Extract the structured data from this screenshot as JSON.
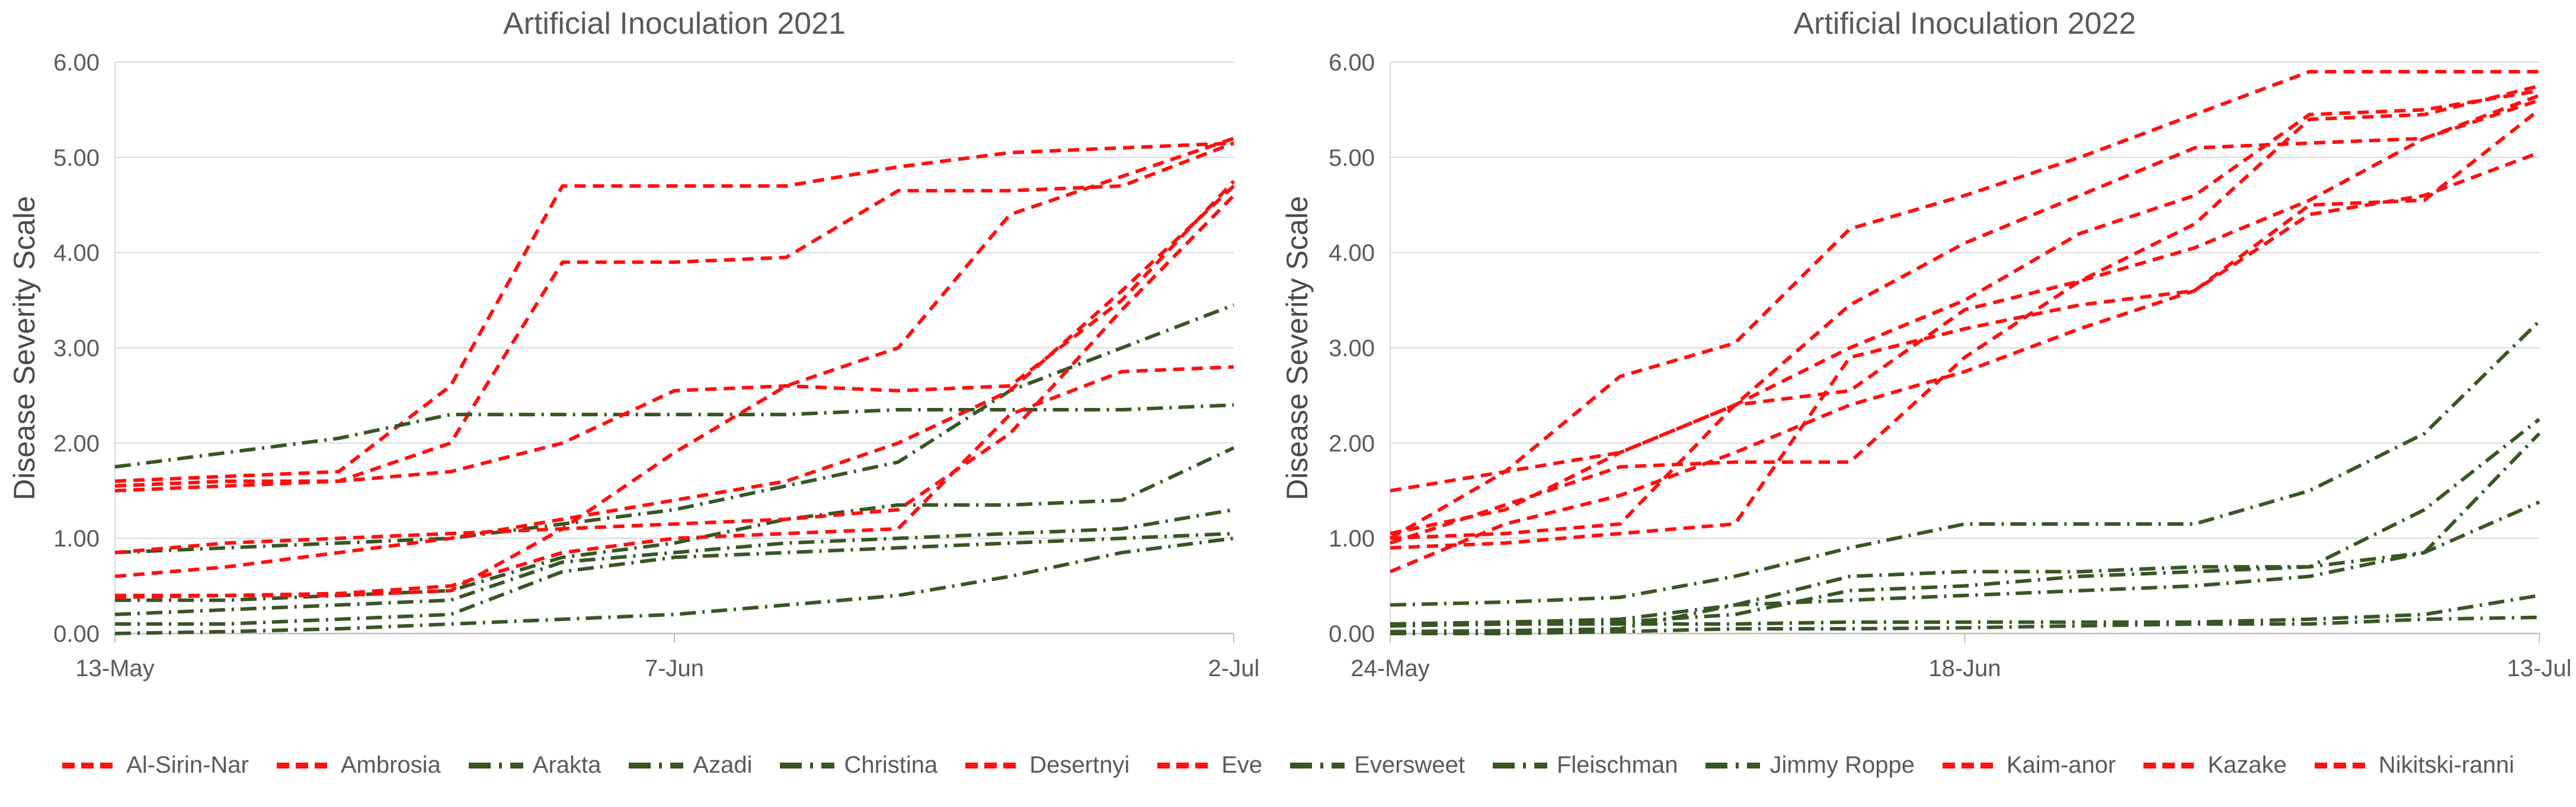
{
  "colors": {
    "red_series": "#FF0F0F",
    "green_series": "#375623",
    "title_text": "#595959",
    "axis_text": "#595959",
    "y_axis_title_text": "#4a4a4a",
    "gridline": "#D9D9D9",
    "axis_line": "#BFBFBF"
  },
  "legend": {
    "items": [
      {
        "label": "Al-Sirin-Nar",
        "group": "red"
      },
      {
        "label": "Ambrosia",
        "group": "red"
      },
      {
        "label": "Arakta",
        "group": "green"
      },
      {
        "label": "Azadi",
        "group": "green"
      },
      {
        "label": "Christina",
        "group": "green"
      },
      {
        "label": "Desertnyi",
        "group": "red"
      },
      {
        "label": "Eve",
        "group": "red"
      },
      {
        "label": "Eversweet",
        "group": "green"
      },
      {
        "label": "Fleischman",
        "group": "green"
      },
      {
        "label": "Jimmy Roppe",
        "group": "green"
      },
      {
        "label": "Kaim-anor",
        "group": "red"
      },
      {
        "label": "Kazake",
        "group": "red"
      },
      {
        "label": "Nikitski-ranni",
        "group": "red"
      }
    ]
  },
  "chart_data": [
    {
      "type": "line",
      "title": "Artificial Inoculation 2021",
      "xlabel": "",
      "ylabel": "Disease Severity Scale",
      "ylim": [
        0,
        6
      ],
      "grid": "horizontal",
      "legend_position": "bottom",
      "n_points": 11,
      "y_ticks": [
        "6.00",
        "5.00",
        "4.00",
        "3.00",
        "2.00",
        "1.00",
        "0.00"
      ],
      "x_ticks": [
        {
          "label": "13-May",
          "pos": 0
        },
        {
          "label": "7-Jun",
          "pos": 0.5
        },
        {
          "label": "2-Jul",
          "pos": 1
        }
      ],
      "series": [
        {
          "name": "Al-Sirin-Nar",
          "group": "red",
          "values": [
            1.6,
            1.65,
            1.7,
            2.6,
            4.7,
            4.7,
            4.7,
            4.9,
            5.05,
            5.1,
            5.15
          ]
        },
        {
          "name": "Ambrosia",
          "group": "red",
          "values": [
            1.55,
            1.6,
            1.6,
            2.0,
            3.9,
            3.9,
            3.95,
            4.65,
            4.65,
            4.7,
            5.15
          ]
        },
        {
          "name": "Arakta",
          "group": "green",
          "values": [
            1.75,
            1.9,
            2.05,
            2.3,
            2.3,
            2.3,
            2.3,
            2.35,
            2.35,
            2.35,
            2.4
          ]
        },
        {
          "name": "Azadi",
          "group": "green",
          "values": [
            0.85,
            0.9,
            0.95,
            1.0,
            1.15,
            1.3,
            1.55,
            1.8,
            2.55,
            3.0,
            3.45
          ]
        },
        {
          "name": "Christina",
          "group": "green",
          "values": [
            0.35,
            0.35,
            0.4,
            0.45,
            0.8,
            0.95,
            1.2,
            1.35,
            1.35,
            1.4,
            1.95
          ]
        },
        {
          "name": "Desertnyi",
          "group": "red",
          "values": [
            0.85,
            0.95,
            1.0,
            1.05,
            1.1,
            1.9,
            2.6,
            3.0,
            4.4,
            4.8,
            5.2
          ]
        },
        {
          "name": "Eve",
          "group": "red",
          "values": [
            1.5,
            1.55,
            1.6,
            1.7,
            2.0,
            2.55,
            2.6,
            2.55,
            2.6,
            3.5,
            4.75
          ]
        },
        {
          "name": "Eversweet",
          "group": "green",
          "values": [
            0.2,
            0.25,
            0.3,
            0.35,
            0.75,
            0.85,
            0.95,
            1.0,
            1.05,
            1.1,
            1.3
          ]
        },
        {
          "name": "Fleischman",
          "group": "green",
          "values": [
            0.1,
            0.1,
            0.15,
            0.2,
            0.65,
            0.8,
            0.85,
            0.9,
            0.95,
            1.0,
            1.05
          ]
        },
        {
          "name": "Jimmy Roppe",
          "group": "green",
          "values": [
            0.0,
            0.02,
            0.05,
            0.1,
            0.15,
            0.2,
            0.3,
            0.4,
            0.6,
            0.85,
            1.0
          ]
        },
        {
          "name": "Kaim-anor",
          "group": "red",
          "values": [
            0.6,
            0.7,
            0.85,
            1.0,
            1.2,
            1.4,
            1.6,
            2.0,
            2.55,
            3.6,
            4.7
          ]
        },
        {
          "name": "Kazake",
          "group": "red",
          "values": [
            0.4,
            0.4,
            0.4,
            0.45,
            1.1,
            1.15,
            1.2,
            1.3,
            2.1,
            3.4,
            4.6
          ]
        },
        {
          "name": "Nikitski-ranni",
          "group": "red",
          "values": [
            0.38,
            0.4,
            0.42,
            0.5,
            0.85,
            1.0,
            1.05,
            1.1,
            2.3,
            2.75,
            2.8
          ]
        }
      ]
    },
    {
      "type": "line",
      "title": "Artificial Inoculation 2022",
      "xlabel": "",
      "ylabel": "Disease Severity Scale",
      "ylim": [
        0,
        6
      ],
      "grid": "horizontal",
      "legend_position": "bottom",
      "n_points": 11,
      "y_ticks": [
        "6.00",
        "5.00",
        "4.00",
        "3.00",
        "2.00",
        "1.00",
        "0.00"
      ],
      "x_ticks": [
        {
          "label": "24-May",
          "pos": 0
        },
        {
          "label": "18-Jun",
          "pos": 0.5
        },
        {
          "label": "13-Jul",
          "pos": 1
        }
      ],
      "series": [
        {
          "name": "Al-Sirin-Nar",
          "group": "red",
          "values": [
            1.0,
            1.7,
            2.7,
            3.05,
            4.25,
            4.6,
            5.0,
            5.45,
            5.9,
            5.9,
            5.9
          ]
        },
        {
          "name": "Ambrosia",
          "group": "red",
          "values": [
            0.95,
            1.35,
            1.75,
            1.8,
            1.8,
            2.9,
            3.7,
            4.3,
            5.4,
            5.45,
            5.75
          ]
        },
        {
          "name": "Arakta",
          "group": "green",
          "values": [
            0.3,
            0.33,
            0.38,
            0.6,
            0.9,
            1.15,
            1.15,
            1.15,
            1.5,
            2.1,
            3.28
          ]
        },
        {
          "name": "Azadi",
          "group": "green",
          "values": [
            0.1,
            0.12,
            0.15,
            0.3,
            0.6,
            0.65,
            0.65,
            0.7,
            0.7,
            1.3,
            2.25
          ]
        },
        {
          "name": "Christina",
          "group": "green",
          "values": [
            0.08,
            0.1,
            0.12,
            0.2,
            0.45,
            0.5,
            0.6,
            0.65,
            0.7,
            0.85,
            2.1
          ]
        },
        {
          "name": "Desertnyi",
          "group": "red",
          "values": [
            1.05,
            1.3,
            1.9,
            2.4,
            3.0,
            3.5,
            4.2,
            4.6,
            5.45,
            5.5,
            5.7
          ]
        },
        {
          "name": "Eve",
          "group": "red",
          "values": [
            1.0,
            1.05,
            1.15,
            2.4,
            3.45,
            4.1,
            4.6,
            5.1,
            5.15,
            5.2,
            5.65
          ]
        },
        {
          "name": "Eversweet",
          "group": "green",
          "values": [
            0.02,
            0.03,
            0.05,
            0.3,
            0.35,
            0.4,
            0.45,
            0.5,
            0.6,
            0.85,
            1.38
          ]
        },
        {
          "name": "Fleischman",
          "group": "green",
          "values": [
            0.1,
            0.1,
            0.1,
            0.1,
            0.12,
            0.12,
            0.12,
            0.12,
            0.15,
            0.2,
            0.4
          ]
        },
        {
          "name": "Jimmy Roppe",
          "group": "green",
          "values": [
            0.0,
            0.0,
            0.02,
            0.05,
            0.05,
            0.06,
            0.08,
            0.1,
            0.1,
            0.15,
            0.17
          ]
        },
        {
          "name": "Kaim-anor",
          "group": "red",
          "values": [
            1.5,
            1.7,
            1.9,
            2.4,
            2.55,
            3.4,
            3.7,
            4.05,
            4.55,
            5.2,
            5.6
          ]
        },
        {
          "name": "Kazake",
          "group": "red",
          "values": [
            0.9,
            0.95,
            1.05,
            1.15,
            2.9,
            3.2,
            3.45,
            3.6,
            4.5,
            4.55,
            5.5
          ]
        },
        {
          "name": "Nikitski-ranni",
          "group": "red",
          "values": [
            0.65,
            1.15,
            1.45,
            1.9,
            2.4,
            2.75,
            3.2,
            3.6,
            4.4,
            4.6,
            5.05
          ]
        }
      ]
    }
  ]
}
